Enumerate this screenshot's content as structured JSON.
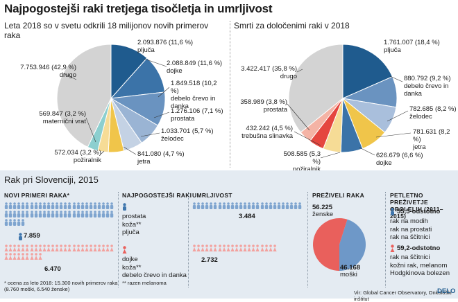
{
  "title": "Najpogostejši raki tretjega tisočletja in umrljivost",
  "left_chart": {
    "subtitle": "Leta 2018 so v svetu odkrili 18 milijonov novih primerov raka",
    "slices": [
      {
        "value": 2093876,
        "pct": "2.093.876 (11,6 %)",
        "name": "pljuča",
        "color": "#1f5b8e"
      },
      {
        "value": 2088849,
        "pct": "2.088.849 (11,6 %)",
        "name": "dojke",
        "color": "#3b73a8"
      },
      {
        "value": 1849518,
        "pct": "1.849.518 (10,2 %)",
        "name": "debelo črevo in danka",
        "color": "#6a93c0"
      },
      {
        "value": 1276106,
        "pct": "1.276.106 (7,1 %)",
        "name": "prostata",
        "color": "#9ab4d4"
      },
      {
        "value": 1033701,
        "pct": "1.033.701 (5,7 %)",
        "name": "želodec",
        "color": "#c4d2e4"
      },
      {
        "value": 841080,
        "pct": "841.080 (4,7 %)",
        "name": "jetra",
        "color": "#f0c54a"
      },
      {
        "value": 572034,
        "pct": "572.034 (3,2 %)",
        "name": "požiralnik",
        "color": "#f6dc96"
      },
      {
        "value": 569847,
        "pct": "569.847 (3,2 %)",
        "name": "maternični vrat",
        "color": "#8ccfcf"
      },
      {
        "value": 7753946,
        "pct": "7.753.946 (42,9 %)",
        "name": "drugo",
        "color": "#d3d3d3"
      }
    ]
  },
  "right_chart": {
    "subtitle": "Smrti za določenimi raki v 2018",
    "slices": [
      {
        "value": 1761007,
        "pct": "1.761.007 (18,4 %)",
        "name": "pljuča",
        "color": "#1f5b8e"
      },
      {
        "value": 880792,
        "pct": "880.792 (9,2 %)",
        "name": "debelo črevo in danka",
        "color": "#6a93c0"
      },
      {
        "value": 782685,
        "pct": "782.685 (8,2 %)",
        "name": "želodec",
        "color": "#a9bfdc"
      },
      {
        "value": 781631,
        "pct": "781.631 (8,2 %)",
        "name": "jetra",
        "color": "#f0c54a"
      },
      {
        "value": 626679,
        "pct": "626.679 (6,6 %)",
        "name": "dojke",
        "color": "#3b73a8"
      },
      {
        "value": 508585,
        "pct": "508.585 (5,3 %)",
        "name": "požiralnik",
        "color": "#f6dc96"
      },
      {
        "value": 432242,
        "pct": "432.242 (4,5 %)",
        "name": "trebušna slinavka",
        "color": "#e5463f"
      },
      {
        "value": 358989,
        "pct": "358.989 (3,8 %)",
        "name": "prostata",
        "color": "#f4b3a5"
      },
      {
        "value": 3422417,
        "pct": "3.422.417 (35,8 %)",
        "name": "drugo",
        "color": "#d3d3d3"
      }
    ]
  },
  "slovenia": {
    "title": "Rak pri Slovenciji, 2015",
    "new_cases": {
      "header": "NOVI PRIMERI RAKA*",
      "men": "7.859",
      "women": "6.470",
      "men_fraction": 0.5467,
      "women_fraction": 0.4501
    },
    "common": {
      "header": "NAJPOGOSTEJŠI RAKI",
      "men": [
        "prostata",
        "koža**",
        "pljuča"
      ],
      "women": [
        "dojke",
        "koža**",
        "debelo črevo in danka"
      ]
    },
    "mortality": {
      "header": "UMRLJIVOST",
      "men": "3.484",
      "women": "2.732",
      "men_fraction": 0.5,
      "women_fraction": 0.39
    },
    "survivors": {
      "header": "PREŽIVELI RAKA",
      "women_value": "56.225",
      "women_label": "ženske",
      "men_value": "46.168",
      "men_label": "moški",
      "women_count": 56225,
      "men_count": 46168
    },
    "five_year": {
      "header": "PETLETNO PREŽIVETJE OBOLELIH (2011–2015)",
      "men_pct": "55,5-odstotno",
      "men_items": [
        "rak na modih",
        "rak na prostati",
        "rak na ščitnici"
      ],
      "women_pct": "59,2-odstotno",
      "women_items": [
        "rak na ščitnici",
        "kožni rak, melanom",
        "Hodgkinova bolezen"
      ]
    }
  },
  "footnotes": {
    "estimate": "* ocena za leto 2018: 15.300 novih primerov raka (8.760 moški, 6.540 ženske)",
    "melanoma": "** razen melanoma",
    "source": "Vir: Global Cancer Observatory, Onkološki inštitut",
    "brand": "DELO"
  },
  "colors": {
    "men": "#3f76ad",
    "women": "#e9605c",
    "men_light": "#7ea4cf",
    "women_light": "#f3a19e"
  }
}
